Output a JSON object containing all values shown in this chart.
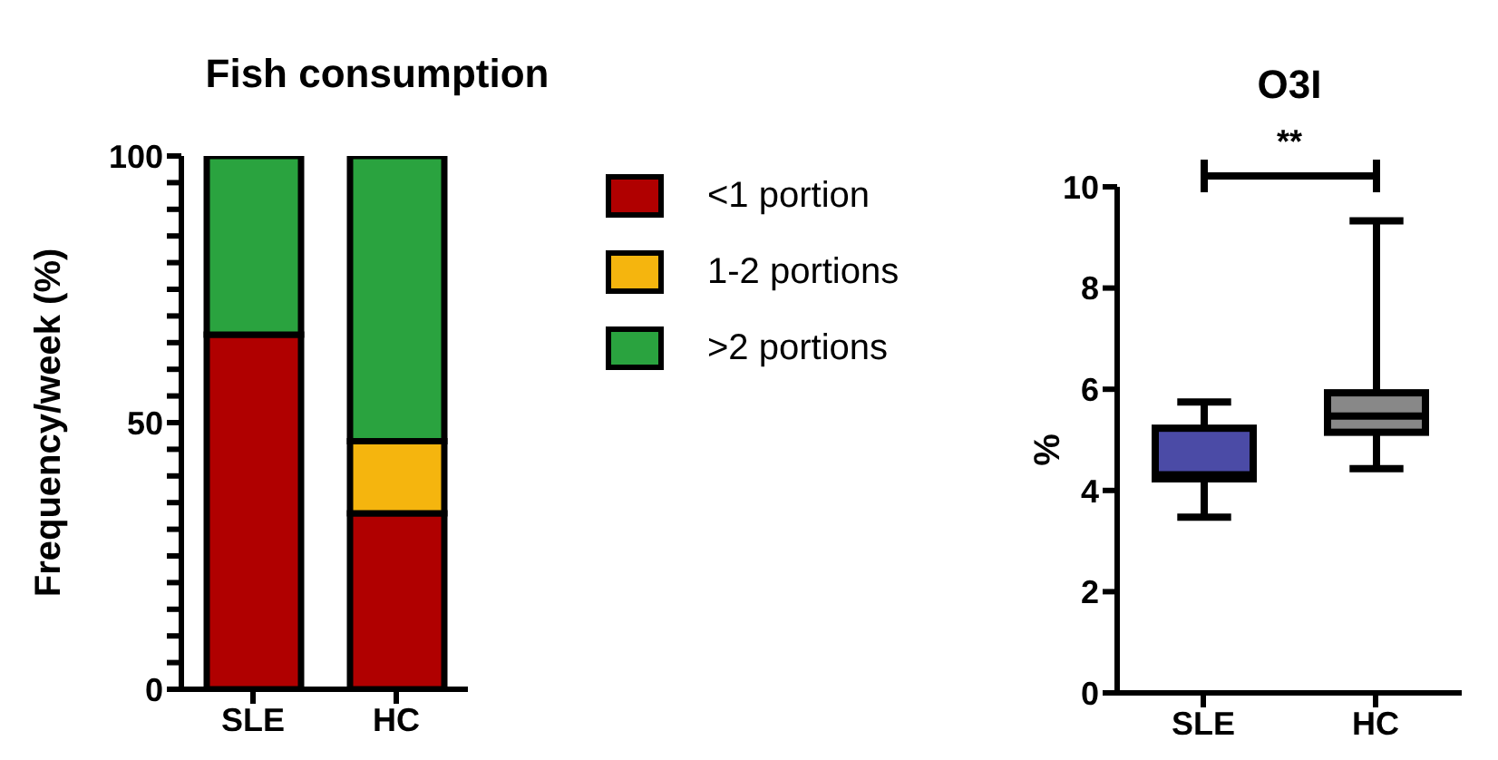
{
  "chart_data": [
    {
      "type": "bar",
      "title": "Fish consumption",
      "ylabel": "Frequency/week (%)",
      "categories": [
        "SLE",
        "HC"
      ],
      "stacked": true,
      "series": [
        {
          "name": "<1 portion",
          "color": "#b00000",
          "values": [
            66.5,
            33
          ]
        },
        {
          "name": "1-2 portions",
          "color": "#f5b50e",
          "values": [
            0,
            13.5
          ]
        },
        {
          "name": ">2 portions",
          "color": "#2aa33f",
          "values": [
            33.5,
            53.5
          ]
        }
      ],
      "ylim": [
        0,
        100
      ],
      "yticks": [
        0,
        {
          "value": 5,
          "label": null
        },
        {
          "value": 10,
          "label": null
        },
        {
          "value": 15,
          "label": null
        },
        {
          "value": 20,
          "label": null
        },
        {
          "value": 25,
          "label": null
        },
        {
          "value": 30,
          "label": null
        },
        {
          "value": 35,
          "label": null
        },
        {
          "value": 40,
          "label": null
        },
        {
          "value": 45,
          "label": null
        },
        50,
        {
          "value": 55,
          "label": null
        },
        {
          "value": 60,
          "label": null
        },
        {
          "value": 65,
          "label": null
        },
        {
          "value": 70,
          "label": null
        },
        {
          "value": 75,
          "label": null
        },
        {
          "value": 80,
          "label": null
        },
        {
          "value": 85,
          "label": null
        },
        {
          "value": 90,
          "label": null
        },
        {
          "value": 95,
          "label": null
        },
        100
      ],
      "grid": false,
      "legend": "right"
    },
    {
      "type": "box",
      "title": "O3I",
      "ylabel": "%",
      "categories": [
        "SLE",
        "HC"
      ],
      "colors": [
        "#4b4ba6",
        "#888888"
      ],
      "boxes": [
        {
          "low": 3.47,
          "q1": 4.23,
          "median": 4.31,
          "q3": 5.23,
          "high": 5.75
        },
        {
          "low": 4.43,
          "q1": 5.15,
          "median": 5.47,
          "q3": 5.93,
          "high": 9.33
        }
      ],
      "ylim": [
        0,
        10
      ],
      "yticks": [
        0,
        2,
        4,
        6,
        8,
        10
      ],
      "grid": false,
      "annotations": [
        "**"
      ]
    }
  ]
}
